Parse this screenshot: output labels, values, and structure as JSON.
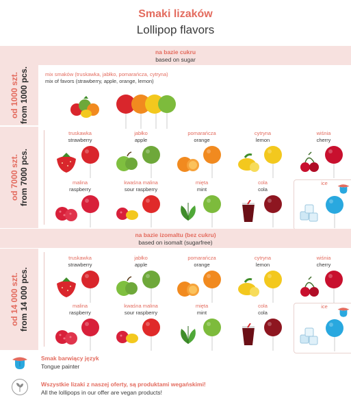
{
  "header": {
    "title_pl": "Smaki lizaków",
    "title_en": "Lollipop flavors"
  },
  "sugar_section": {
    "label_pl": "na bazie cukru",
    "label_en": "based on sugar"
  },
  "isomalt_section": {
    "label_pl": "na bazie izomaltu (bez cukru)",
    "label_en": "based on isomalt (sugarfree)"
  },
  "tiers": [
    {
      "label_pl": "od 1000 szt.",
      "label_en": "from 1000 pcs."
    },
    {
      "label_pl": "od 7000 szt.",
      "label_en": "from 7000 pcs."
    },
    {
      "label_pl": "od 14 000 szt.",
      "label_en": "from 14 000 pcs."
    }
  ],
  "mix": {
    "label_pl": "mix smaków (truskawka, jabłko, pomarańcza, cytryna)",
    "label_en": "mix of favors (strawberry, apple, orange, lemon)"
  },
  "flavors": [
    {
      "pl": "truskawka",
      "en": "strawberry",
      "fruit": "strawberry-icon",
      "color": "#d9262c"
    },
    {
      "pl": "jabłko",
      "en": "apple",
      "fruit": "apple-icon",
      "color": "#6ea83a"
    },
    {
      "pl": "pomarańcza",
      "en": "orange",
      "fruit": "orange-icon",
      "color": "#f18a1f"
    },
    {
      "pl": "cytryna",
      "en": "lemon",
      "fruit": "lemon-icon",
      "color": "#f3c81e"
    },
    {
      "pl": "wiśnia",
      "en": "cherry",
      "fruit": "cherry-icon",
      "color": "#c8102e"
    },
    {
      "pl": "malina",
      "en": "raspberry",
      "fruit": "raspberry-icon",
      "color": "#d8203a"
    },
    {
      "pl": "kwaśna malina",
      "en": "sour raspberry",
      "fruit": "sour-raspberry-icon",
      "color": "#e02a2a"
    },
    {
      "pl": "mięta",
      "en": "mint",
      "fruit": "mint-icon",
      "color": "#7dbb3c"
    },
    {
      "pl": "cola",
      "en": "cola",
      "fruit": "cola-icon",
      "color": "#8e1620"
    },
    {
      "pl": "ice",
      "en": "",
      "fruit": "ice-cubes-icon",
      "color": "#29a8df"
    }
  ],
  "notes": {
    "tongue_pl": "Smak barwiący język",
    "tongue_en": "Tongue painter",
    "vegan_pl": "Wszystkie lizaki z naszej oferty, są produktami wegańskimi!",
    "vegan_en": "All the lollipops in our offer are vegan products!"
  },
  "colors": {
    "accent": "#e36b5e",
    "band": "#f7e1df",
    "text": "#3a3a3a"
  }
}
